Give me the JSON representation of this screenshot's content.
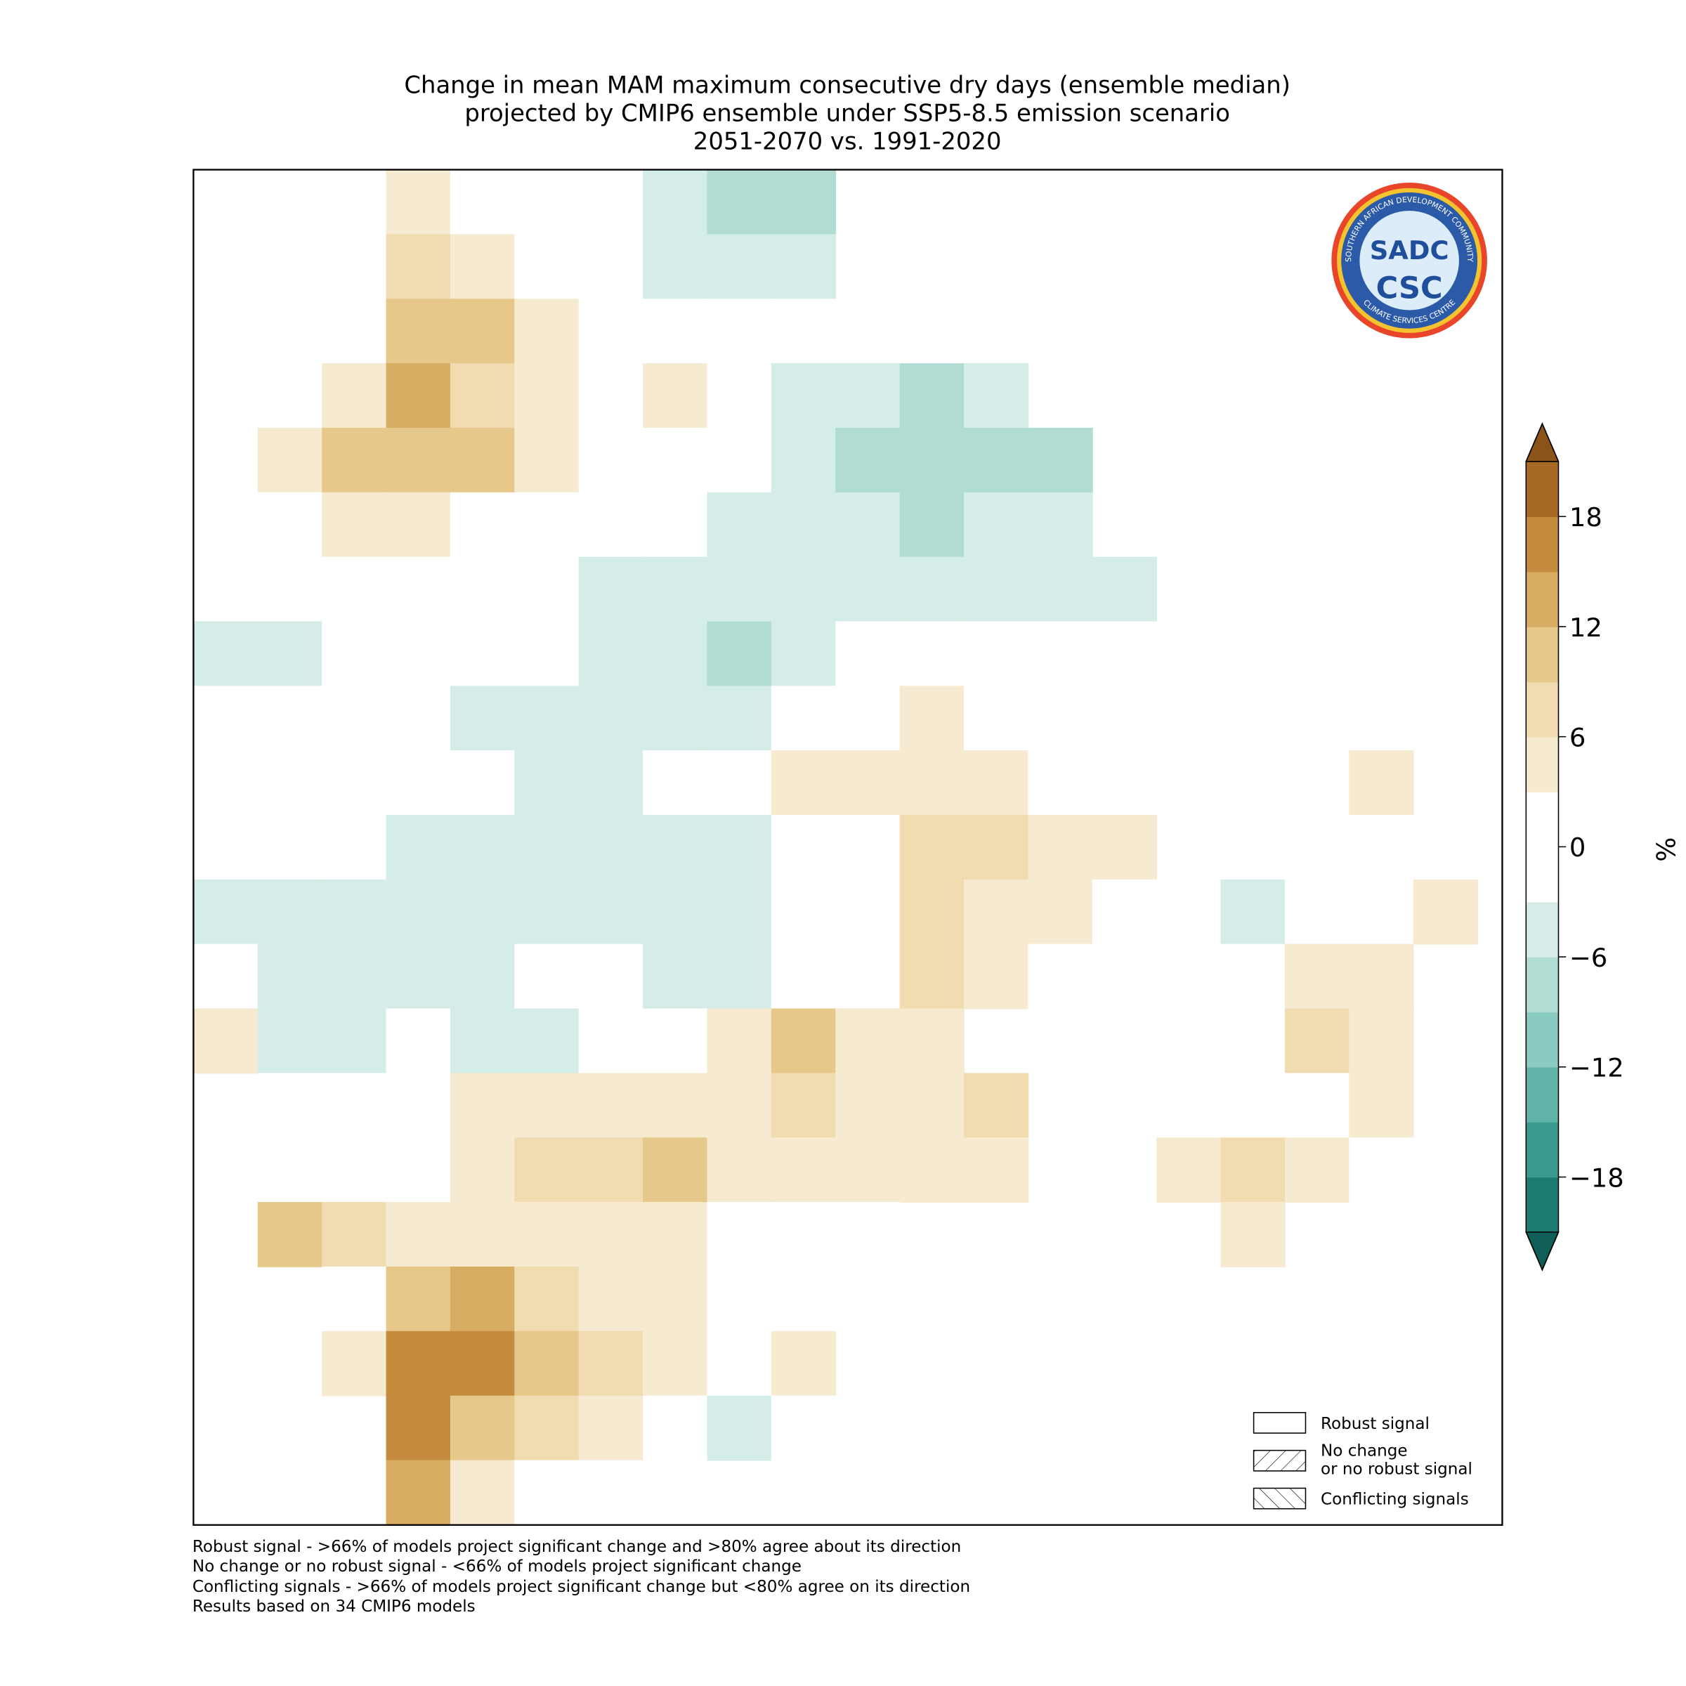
{
  "chart_data": {
    "type": "map",
    "title": [
      "Change in mean MAM maximum consecutive dry days (ensemble median)",
      "projected by CMIP6 ensemble under SSP5-8.5 emission scenario",
      "2051-2070 vs. 1991-2020"
    ],
    "grid": [
      [
        null,
        null,
        null,
        5,
        3,
        2,
        0,
        -3,
        -6,
        -8,
        null,
        null,
        null,
        null,
        null,
        null,
        null,
        null,
        null,
        null
      ],
      [
        null,
        null,
        null,
        8,
        5,
        0,
        0,
        -3,
        -4,
        -4,
        null,
        null,
        null,
        null,
        null,
        null,
        null,
        null,
        null,
        null
      ],
      [
        null,
        null,
        null,
        12,
        10,
        6,
        0,
        -2,
        0,
        -2,
        null,
        null,
        null,
        null,
        null,
        null,
        null,
        null,
        null,
        null
      ],
      [
        null,
        null,
        6,
        14,
        8,
        5,
        3,
        4,
        0,
        -3,
        -5,
        -8,
        -3,
        null,
        null,
        null,
        null,
        null,
        null,
        null
      ],
      [
        3,
        6,
        10,
        10,
        10,
        6,
        3,
        3,
        0,
        -4,
        -6,
        -8,
        -8,
        -8,
        null,
        null,
        null,
        null,
        null,
        null
      ],
      [
        2,
        3,
        4,
        4,
        3,
        3,
        0,
        -2,
        -3,
        -4,
        -5,
        -6,
        -3,
        -5,
        null,
        null,
        null,
        null,
        null,
        null
      ],
      [
        0,
        0,
        0,
        2,
        0,
        -2,
        -3,
        -3,
        -5,
        -3,
        -4,
        -5,
        -3,
        -5,
        -4,
        null,
        null,
        null,
        null,
        null
      ],
      [
        -4,
        -4,
        0,
        0,
        0,
        -2,
        -4,
        -5,
        -8,
        -3,
        -2,
        2,
        0,
        0,
        -2,
        null,
        null,
        null,
        null,
        null
      ],
      [
        -2,
        0,
        0,
        0,
        -4,
        -3,
        -4,
        -5,
        -3,
        0,
        3,
        4,
        3,
        0,
        -2,
        null,
        null,
        null,
        null,
        null
      ],
      [
        3,
        -2,
        0,
        -2,
        0,
        -3,
        -3,
        -2,
        0,
        4,
        4,
        6,
        4,
        3,
        3,
        null,
        null,
        null,
        4,
        null
      ],
      [
        0,
        0,
        0,
        -3,
        -4,
        -3,
        -4,
        -3,
        -3,
        2,
        0,
        8,
        8,
        6,
        6,
        null,
        null,
        null,
        0,
        null
      ],
      [
        -3,
        -3,
        -3,
        -3,
        -5,
        -4,
        -4,
        -5,
        -4,
        -2,
        0,
        8,
        6,
        5,
        3,
        null,
        -3,
        0,
        0,
        4
      ],
      [
        -2,
        -3,
        -3,
        -3,
        -3,
        0,
        -2,
        -3,
        -3,
        3,
        3,
        9,
        6,
        3,
        null,
        null,
        0,
        6,
        6,
        null
      ],
      [
        4,
        -3,
        -3,
        -2,
        -3,
        -3,
        -2,
        0,
        4,
        10,
        4,
        5,
        null,
        null,
        null,
        0,
        0,
        8,
        6,
        null
      ],
      [
        null,
        3,
        0,
        3,
        5,
        5,
        5,
        5,
        5,
        8,
        6,
        6,
        9,
        null,
        null,
        2,
        0,
        3,
        4,
        null
      ],
      [
        null,
        3,
        0,
        3,
        6,
        7,
        8,
        10,
        6,
        5,
        6,
        6,
        5,
        null,
        null,
        6,
        7,
        6,
        3,
        null
      ],
      [
        null,
        10,
        8,
        5,
        5,
        5,
        5,
        5,
        3,
        0,
        3,
        null,
        null,
        null,
        null,
        null,
        6,
        null,
        null,
        null
      ],
      [
        null,
        null,
        3,
        12,
        14,
        8,
        6,
        4,
        0,
        0,
        2,
        null,
        null,
        null,
        null,
        null,
        null,
        null,
        null,
        null
      ],
      [
        null,
        null,
        4,
        16,
        16,
        12,
        8,
        4,
        -2,
        4,
        null,
        null,
        null,
        null,
        null,
        null,
        null,
        null,
        null,
        null
      ],
      [
        null,
        null,
        null,
        16,
        12,
        8,
        4,
        3,
        -3,
        3,
        null,
        null,
        null,
        null,
        null,
        null,
        null,
        null,
        null,
        null
      ],
      [
        null,
        null,
        null,
        14,
        6,
        3,
        2,
        null,
        null,
        null,
        null,
        null,
        null,
        null,
        null,
        null,
        null,
        null,
        null,
        null
      ]
    ],
    "colorbar": {
      "label": "%",
      "levels": [
        -21,
        -18,
        -15,
        -12,
        -9,
        -6,
        -3,
        3,
        6,
        9,
        12,
        15,
        18,
        21
      ],
      "colors": [
        "#1b7b73",
        "#3a9a8f",
        "#5fb3a7",
        "#89cbc0",
        "#b0dcd3",
        "#d5ede8",
        "#ffffff",
        "#f6ead0",
        "#f0dcb0",
        "#e6c88a",
        "#d8ad63",
        "#c48c3c",
        "#a86a22"
      ],
      "under_color": "#0f5e57",
      "over_color": "#8a5418",
      "ticks": [
        {
          "value": -18,
          "label": "−18"
        },
        {
          "value": -12,
          "label": "−12"
        },
        {
          "value": -6,
          "label": "−6"
        },
        0,
        6,
        12,
        18
      ]
    },
    "legend": [
      "Robust signal",
      "No change\nor no robust signal",
      "Conflicting signals"
    ],
    "footnotes": [
      "Robust signal - >66% of models project significant change and >80% agree about its direction",
      "No change or no robust signal - <66% of models project significant change",
      "Conflicting signals - >66% of models project significant change but <80% agree on its direction",
      "Results based on 34 CMIP6 models"
    ],
    "logo": {
      "top_text": "SOUTHERN AFRICAN DEVELOPMENT COMMUNITY",
      "name": "SADC",
      "short": "CSC",
      "bottom_text": "CLIMATE SERVICES CENTRE"
    }
  }
}
